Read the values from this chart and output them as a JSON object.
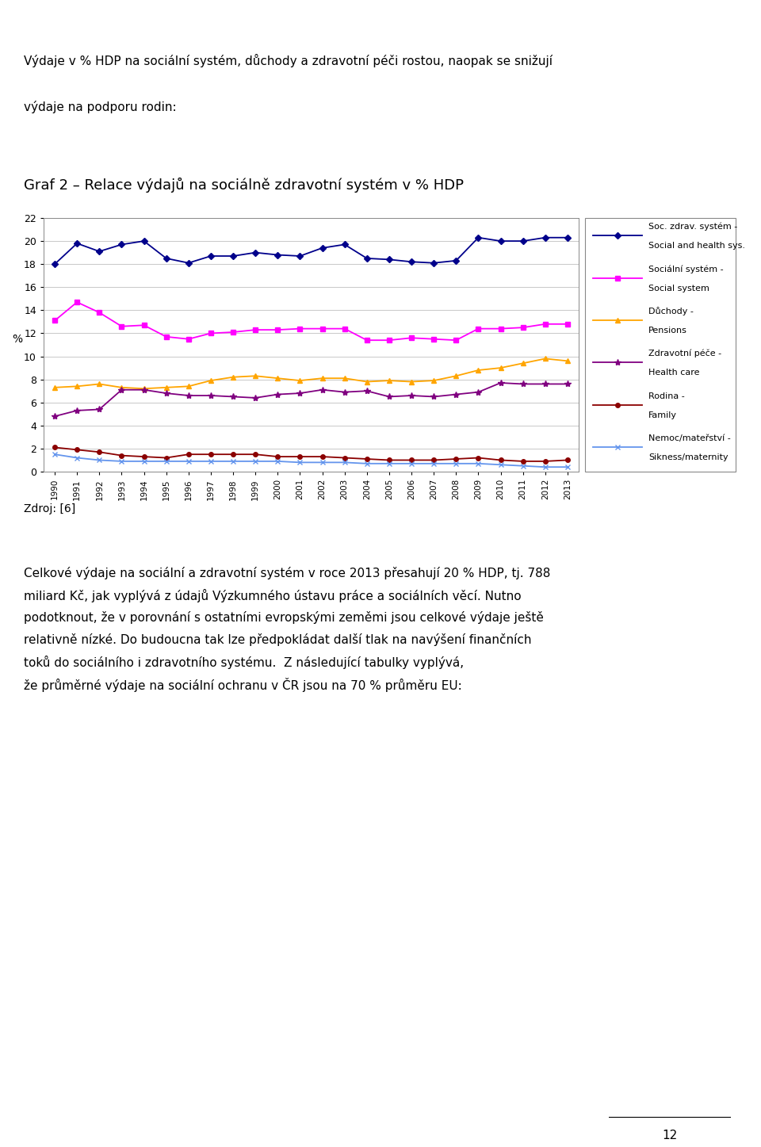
{
  "title_text": "Graf 2 – Relace výdajů na sociálně zdravotní systém v % HDP",
  "header_text": "Výdaje v % HDP na sociální systém, důchody a zdravotní péči rostou, naopak se snižují",
  "header_text2": "výdaje na podporu rodin:",
  "source_text": "Zdroj: [6]",
  "page_number": "12",
  "ylabel": "%",
  "ylim": [
    0,
    22
  ],
  "yticks": [
    0,
    2,
    4,
    6,
    8,
    10,
    12,
    14,
    16,
    18,
    20,
    22
  ],
  "years": [
    1990,
    1991,
    1992,
    1993,
    1994,
    1995,
    1996,
    1997,
    1998,
    1999,
    2000,
    2001,
    2002,
    2003,
    2004,
    2005,
    2006,
    2007,
    2008,
    2009,
    2010,
    2011,
    2012,
    2013
  ],
  "body_lines": [
    "Celkové výdaje na sociální a zdravotní systém v roce 2013 přesahují 20 % HDP, tj. 788",
    "miliard Kč, jak vyplývá z údajů Výzkumného ústavu práce a sociálních věcí. Nutno",
    "podotknout, že v porovnání s ostatními evropskými zeměmi jsou celkové výdaje ještě",
    "relativně nízké. Do budoucna tak lze předpokládat další tlak na navýšení finančních",
    "toků do sociálního i zdravotního systému.  Z následující tabulky vyplývá,",
    "že průměrné výdaje na sociální ochranu v ČR jsou na 70 % průměru EU:"
  ],
  "series": [
    {
      "label1": "Soc. zdrav. systém -",
      "label2": "Social and health sys.",
      "color": "#00008B",
      "marker": "D",
      "markersize": 4,
      "linewidth": 1.3,
      "values": [
        18.0,
        19.8,
        19.1,
        19.7,
        20.0,
        18.5,
        18.1,
        18.7,
        18.7,
        19.0,
        18.8,
        18.7,
        19.4,
        19.7,
        18.5,
        18.4,
        18.2,
        18.1,
        18.3,
        20.3,
        20.0,
        20.0,
        20.3,
        20.3
      ]
    },
    {
      "label1": "Sociální systém -",
      "label2": "Social system",
      "color": "#FF00FF",
      "marker": "s",
      "markersize": 4,
      "linewidth": 1.3,
      "values": [
        13.1,
        14.7,
        13.8,
        12.6,
        12.7,
        11.7,
        11.5,
        12.0,
        12.1,
        12.3,
        12.3,
        12.4,
        12.4,
        12.4,
        11.4,
        11.4,
        11.6,
        11.5,
        11.4,
        12.4,
        12.4,
        12.5,
        12.8,
        12.8
      ]
    },
    {
      "label1": "Důchody -",
      "label2": "Pensions",
      "color": "#FFA500",
      "marker": "^",
      "markersize": 5,
      "linewidth": 1.3,
      "values": [
        7.3,
        7.4,
        7.6,
        7.3,
        7.2,
        7.3,
        7.4,
        7.9,
        8.2,
        8.3,
        8.1,
        7.9,
        8.1,
        8.1,
        7.8,
        7.9,
        7.8,
        7.9,
        8.3,
        8.8,
        9.0,
        9.4,
        9.8,
        9.6
      ]
    },
    {
      "label1": "Zdravotní péče -",
      "label2": "Health care",
      "color": "#800080",
      "marker": "*",
      "markersize": 6,
      "linewidth": 1.3,
      "values": [
        4.8,
        5.3,
        5.4,
        7.1,
        7.1,
        6.8,
        6.6,
        6.6,
        6.5,
        6.4,
        6.7,
        6.8,
        7.1,
        6.9,
        7.0,
        6.5,
        6.6,
        6.5,
        6.7,
        6.9,
        7.7,
        7.6,
        7.6,
        7.6
      ]
    },
    {
      "label1": "Rodina -",
      "label2": "Family",
      "color": "#8B0000",
      "marker": "o",
      "markersize": 4,
      "linewidth": 1.3,
      "values": [
        2.1,
        1.9,
        1.7,
        1.4,
        1.3,
        1.2,
        1.5,
        1.5,
        1.5,
        1.5,
        1.3,
        1.3,
        1.3,
        1.2,
        1.1,
        1.0,
        1.0,
        1.0,
        1.1,
        1.2,
        1.0,
        0.9,
        0.9,
        1.0
      ]
    },
    {
      "label1": "Nemoc/mateřství -",
      "label2": "Sikness/maternity",
      "color": "#6495ED",
      "marker": "x",
      "markersize": 5,
      "linewidth": 1.3,
      "values": [
        1.5,
        1.2,
        1.0,
        0.9,
        0.9,
        0.9,
        0.9,
        0.9,
        0.9,
        0.9,
        0.9,
        0.8,
        0.8,
        0.8,
        0.7,
        0.7,
        0.7,
        0.7,
        0.7,
        0.7,
        0.6,
        0.5,
        0.4,
        0.4
      ]
    }
  ]
}
